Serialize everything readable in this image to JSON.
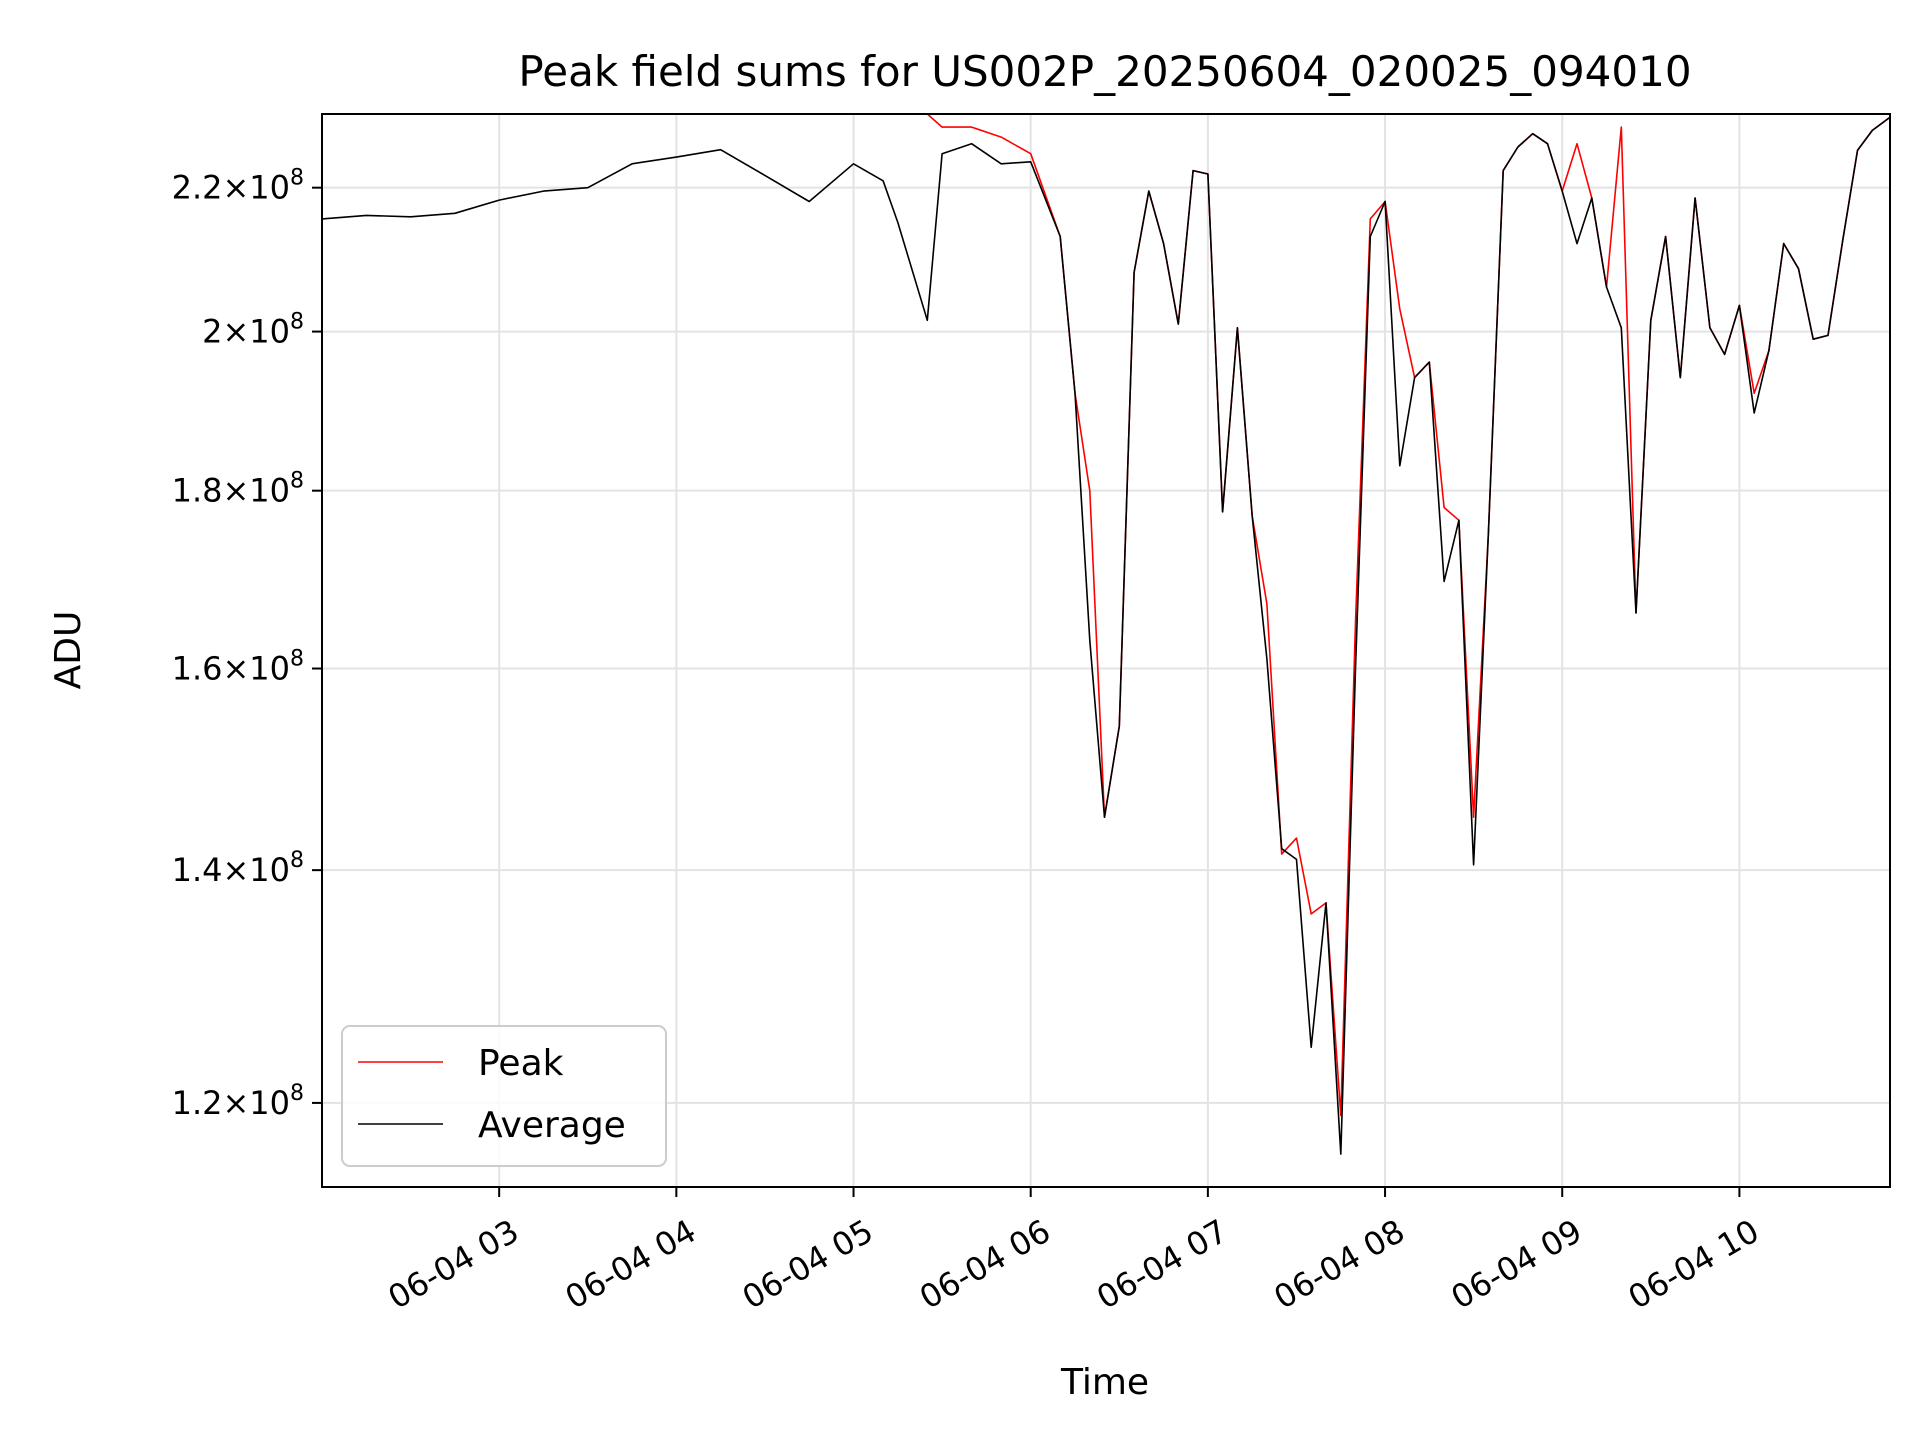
{
  "chart_data": {
    "type": "line",
    "title": "Peak field sums for US002P_20250604_020025_094010",
    "xlabel": "Time",
    "ylabel": "ADU",
    "y_scale": "log",
    "ylim": [
      113500000,
      231000000
    ],
    "xlim": [
      "2025-06-04 02:00",
      "2025-06-04 10:51"
    ],
    "x_ticks": [
      {
        "value": "2025-06-04 03:00",
        "label": "06-04 03"
      },
      {
        "value": "2025-06-04 04:00",
        "label": "06-04 04"
      },
      {
        "value": "2025-06-04 05:00",
        "label": "06-04 05"
      },
      {
        "value": "2025-06-04 06:00",
        "label": "06-04 06"
      },
      {
        "value": "2025-06-04 07:00",
        "label": "06-04 07"
      },
      {
        "value": "2025-06-04 08:00",
        "label": "06-04 08"
      },
      {
        "value": "2025-06-04 09:00",
        "label": "06-04 09"
      },
      {
        "value": "2025-06-04 10:00",
        "label": "06-04 10"
      }
    ],
    "y_ticks": [
      {
        "value": 120000000,
        "mantissa": "1.2",
        "exponent": "8"
      },
      {
        "value": 140000000,
        "mantissa": "1.4",
        "exponent": "8"
      },
      {
        "value": 160000000,
        "mantissa": "1.6",
        "exponent": "8"
      },
      {
        "value": 180000000,
        "mantissa": "1.8",
        "exponent": "8"
      },
      {
        "value": 200000000,
        "mantissa": "2",
        "exponent": "8"
      },
      {
        "value": 220000000,
        "mantissa": "2.2",
        "exponent": "8"
      }
    ],
    "grid": true,
    "legend_position": "bottom-left",
    "series": [
      {
        "name": "Average",
        "color": "#000000",
        "x": [
          "2025-06-04 02:00",
          "2025-06-04 02:15",
          "2025-06-04 02:30",
          "2025-06-04 02:45",
          "2025-06-04 03:00",
          "2025-06-04 03:15",
          "2025-06-04 03:30",
          "2025-06-04 03:45",
          "2025-06-04 04:00",
          "2025-06-04 04:15",
          "2025-06-04 04:30",
          "2025-06-04 04:45",
          "2025-06-04 05:00",
          "2025-06-04 05:10",
          "2025-06-04 05:15",
          "2025-06-04 05:25",
          "2025-06-04 05:30",
          "2025-06-04 05:40",
          "2025-06-04 05:50",
          "2025-06-04 06:00",
          "2025-06-04 06:10",
          "2025-06-04 06:15",
          "2025-06-04 06:20",
          "2025-06-04 06:25",
          "2025-06-04 06:30",
          "2025-06-04 06:35",
          "2025-06-04 06:40",
          "2025-06-04 06:45",
          "2025-06-04 06:50",
          "2025-06-04 06:55",
          "2025-06-04 07:00",
          "2025-06-04 07:05",
          "2025-06-04 07:10",
          "2025-06-04 07:15",
          "2025-06-04 07:20",
          "2025-06-04 07:25",
          "2025-06-04 07:30",
          "2025-06-04 07:35",
          "2025-06-04 07:40",
          "2025-06-04 07:45",
          "2025-06-04 07:50",
          "2025-06-04 07:55",
          "2025-06-04 08:00",
          "2025-06-04 08:05",
          "2025-06-04 08:10",
          "2025-06-04 08:15",
          "2025-06-04 08:20",
          "2025-06-04 08:25",
          "2025-06-04 08:30",
          "2025-06-04 08:35",
          "2025-06-04 08:40",
          "2025-06-04 08:45",
          "2025-06-04 08:50",
          "2025-06-04 08:55",
          "2025-06-04 09:00",
          "2025-06-04 09:05",
          "2025-06-04 09:10",
          "2025-06-04 09:15",
          "2025-06-04 09:20",
          "2025-06-04 09:25",
          "2025-06-04 09:30",
          "2025-06-04 09:35",
          "2025-06-04 09:40",
          "2025-06-04 09:45",
          "2025-06-04 09:50",
          "2025-06-04 09:55",
          "2025-06-04 10:00",
          "2025-06-04 10:05",
          "2025-06-04 10:10",
          "2025-06-04 10:15",
          "2025-06-04 10:20",
          "2025-06-04 10:25",
          "2025-06-04 10:30",
          "2025-06-04 10:35",
          "2025-06-04 10:40",
          "2025-06-04 10:45",
          "2025-06-04 10:51"
        ],
        "values": [
          215500000,
          216000000,
          215800000,
          216300000,
          218200000,
          219500000,
          220000000,
          223500000,
          224500000,
          225600000,
          221800000,
          218000000,
          223500000,
          221000000,
          215000000,
          201500000,
          225000000,
          226500000,
          223500000,
          223800000,
          213000000,
          192000000,
          163000000,
          145000000,
          154000000,
          208000000,
          219500000,
          212000000,
          201000000,
          222500000,
          222000000,
          177500000,
          200500000,
          177000000,
          161000000,
          142000000,
          141000000,
          124500000,
          137000000,
          116000000,
          160000000,
          213000000,
          218000000,
          183000000,
          194000000,
          196000000,
          169500000,
          176500000,
          140500000,
          175000000,
          222500000,
          226000000,
          228000000,
          226500000,
          219500000,
          212000000,
          218500000,
          206000000,
          200500000,
          166000000,
          201500000,
          213000000,
          194000000,
          218500000,
          200500000,
          197000000,
          203500000,
          189500000,
          197500000,
          212000000,
          208500000,
          199000000,
          199500000,
          212500000,
          225500000,
          228500000,
          230500000
        ]
      },
      {
        "name": "Peak",
        "color": "#ff0000",
        "x": [
          "2025-06-04 02:00",
          "2025-06-04 02:15",
          "2025-06-04 02:30",
          "2025-06-04 02:45",
          "2025-06-04 03:00",
          "2025-06-04 03:15",
          "2025-06-04 03:30",
          "2025-06-04 03:45",
          "2025-06-04 04:00",
          "2025-06-04 04:15",
          "2025-06-04 04:30",
          "2025-06-04 04:45",
          "2025-06-04 05:00",
          "2025-06-04 05:10",
          "2025-06-04 05:15",
          "2025-06-04 05:25",
          "2025-06-04 05:30",
          "2025-06-04 05:40",
          "2025-06-04 05:50",
          "2025-06-04 06:00",
          "2025-06-04 06:10",
          "2025-06-04 06:15",
          "2025-06-04 06:20",
          "2025-06-04 06:25",
          "2025-06-04 06:30",
          "2025-06-04 06:35",
          "2025-06-04 06:40",
          "2025-06-04 06:45",
          "2025-06-04 06:50",
          "2025-06-04 06:55",
          "2025-06-04 07:00",
          "2025-06-04 07:05",
          "2025-06-04 07:10",
          "2025-06-04 07:15",
          "2025-06-04 07:20",
          "2025-06-04 07:25",
          "2025-06-04 07:30",
          "2025-06-04 07:35",
          "2025-06-04 07:40",
          "2025-06-04 07:45",
          "2025-06-04 07:50",
          "2025-06-04 07:55",
          "2025-06-04 08:00",
          "2025-06-04 08:05",
          "2025-06-04 08:10",
          "2025-06-04 08:15",
          "2025-06-04 08:20",
          "2025-06-04 08:25",
          "2025-06-04 08:30",
          "2025-06-04 08:35",
          "2025-06-04 08:40",
          "2025-06-04 08:45",
          "2025-06-04 08:50",
          "2025-06-04 08:55",
          "2025-06-04 09:00",
          "2025-06-04 09:05",
          "2025-06-04 09:10",
          "2025-06-04 09:15",
          "2025-06-04 09:20",
          "2025-06-04 09:25",
          "2025-06-04 09:30",
          "2025-06-04 09:35",
          "2025-06-04 09:40",
          "2025-06-04 09:45",
          "2025-06-04 09:50",
          "2025-06-04 09:55",
          "2025-06-04 10:00",
          "2025-06-04 10:05",
          "2025-06-04 10:10",
          "2025-06-04 10:15",
          "2025-06-04 10:20",
          "2025-06-04 10:25",
          "2025-06-04 10:30",
          "2025-06-04 10:35",
          "2025-06-04 10:40",
          "2025-06-04 10:45",
          "2025-06-04 10:51"
        ],
        "values": [
          231000000,
          231000000,
          231000000,
          231000000,
          231000000,
          231000000,
          231000000,
          231000000,
          231000000,
          231000000,
          231000000,
          231000000,
          231000000,
          231000000,
          231000000,
          231000000,
          229000000,
          229000000,
          227500000,
          225000000,
          213000000,
          192000000,
          180000000,
          145000000,
          154000000,
          208000000,
          219500000,
          212000000,
          201000000,
          222500000,
          222000000,
          177500000,
          200500000,
          177000000,
          167000000,
          141500000,
          143000000,
          136000000,
          137000000,
          119000000,
          165000000,
          215500000,
          218000000,
          203000000,
          194000000,
          196000000,
          178000000,
          176500000,
          145000000,
          175000000,
          222500000,
          226000000,
          228000000,
          226500000,
          219500000,
          226500000,
          218500000,
          206000000,
          229000000,
          166000000,
          201500000,
          213000000,
          194000000,
          218500000,
          200500000,
          197000000,
          203500000,
          192000000,
          197500000,
          212000000,
          208500000,
          199000000,
          199500000,
          212500000,
          225500000,
          228500000,
          230500000
        ]
      }
    ]
  }
}
